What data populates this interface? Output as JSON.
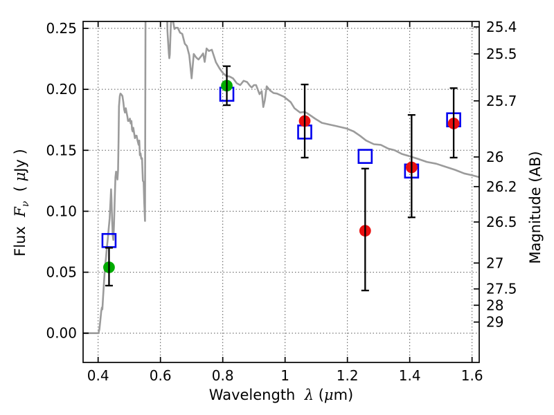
{
  "axis_titles": {
    "x_word": "Wavelength  ",
    "x_lambda": "λ",
    "x_open": " (",
    "x_mu": "μ",
    "x_close": "m)",
    "y_word": "Flux  ",
    "y_F": "F",
    "y_nu": "ν",
    "y_open": "  ( ",
    "y_mu": "μ",
    "y_close": "Jy )",
    "right": "Magnitude (AB)"
  },
  "colors": {
    "spectrum": "#9b9b9b",
    "acs": "#00ab00",
    "wfc3": "#ea1010",
    "model": "#0000ee",
    "grid": "#555555",
    "axes": "#000000",
    "errorbar": "#000000"
  },
  "chart_data": {
    "type": "line+scatter",
    "title": "",
    "xlabel": "Wavelength λ (μm)",
    "ylabel_left": "Flux Fν ( μJy )",
    "ylabel_right": "Magnitude (AB)",
    "xlim": [
      0.3518,
      1.623
    ],
    "ylim": [
      -0.024,
      0.2557
    ],
    "grid": "dotted gridlines at all left-axis and bottom-axis major ticks",
    "legend": "none",
    "x_ticks": [
      {
        "v": 0.4,
        "label": "0.4"
      },
      {
        "v": 0.6,
        "label": "0.6"
      },
      {
        "v": 0.8,
        "label": "0.8"
      },
      {
        "v": 1.0,
        "label": "1"
      },
      {
        "v": 1.2,
        "label": "1.2"
      },
      {
        "v": 1.4,
        "label": "1.4"
      },
      {
        "v": 1.6,
        "label": "1.6"
      }
    ],
    "y_ticks_left": [
      {
        "v": 0.0,
        "label": "0.00"
      },
      {
        "v": 0.05,
        "label": "0.05"
      },
      {
        "v": 0.1,
        "label": "0.10"
      },
      {
        "v": 0.15,
        "label": "0.15"
      },
      {
        "v": 0.2,
        "label": "0.20"
      },
      {
        "v": 0.25,
        "label": "0.25"
      }
    ],
    "y_ticks_right_magnitude": [
      {
        "flux": 0.25119,
        "label": "25.4"
      },
      {
        "flux": 0.22909,
        "label": "25.5"
      },
      {
        "flux": 0.19055,
        "label": "25.7"
      },
      {
        "flux": 0.14454,
        "label": "26"
      },
      {
        "flux": 0.12023,
        "label": "26.2"
      },
      {
        "flux": 0.0912,
        "label": "26.5"
      },
      {
        "flux": 0.05754,
        "label": "27"
      },
      {
        "flux": 0.03631,
        "label": "27.5"
      },
      {
        "flux": 0.02291,
        "label": "28"
      },
      {
        "flux": 0.00912,
        "label": "29"
      }
    ],
    "series": [
      {
        "name": "observed-photometry-green-circles",
        "marker": "filled-circle",
        "color_key": "acs",
        "points": [
          {
            "x": 0.435,
            "y": 0.054,
            "err_lo": 0.015,
            "err_hi": 0.016
          },
          {
            "x": 0.813,
            "y": 0.203,
            "err_lo": 0.016,
            "err_hi": 0.016
          }
        ]
      },
      {
        "name": "observed-photometry-red-circles",
        "marker": "filled-circle",
        "color_key": "wfc3",
        "points": [
          {
            "x": 1.063,
            "y": 0.174,
            "err_lo": 0.03,
            "err_hi": 0.03
          },
          {
            "x": 1.257,
            "y": 0.084,
            "err_lo": 0.049,
            "err_hi": 0.051
          },
          {
            "x": 1.406,
            "y": 0.136,
            "err_lo": 0.041,
            "err_hi": 0.043
          },
          {
            "x": 1.541,
            "y": 0.172,
            "err_lo": 0.028,
            "err_hi": 0.029
          }
        ]
      },
      {
        "name": "model-photometry-blue-open-squares",
        "marker": "open-square",
        "color_key": "model",
        "points": [
          {
            "x": 0.435,
            "y": 0.076
          },
          {
            "x": 0.813,
            "y": 0.196
          },
          {
            "x": 1.063,
            "y": 0.165
          },
          {
            "x": 1.257,
            "y": 0.145
          },
          {
            "x": 1.406,
            "y": 0.133
          },
          {
            "x": 1.541,
            "y": 0.175
          }
        ]
      }
    ],
    "spectrum": {
      "name": "model-spectrum-gray-line",
      "color_key": "spectrum",
      "points": [
        [
          0.352,
          0.0
        ],
        [
          0.401,
          0.0
        ],
        [
          0.404,
          0.003
        ],
        [
          0.407,
          0.01
        ],
        [
          0.41,
          0.018
        ],
        [
          0.412,
          0.021
        ],
        [
          0.4135,
          0.0195
        ],
        [
          0.416,
          0.03
        ],
        [
          0.419,
          0.042
        ],
        [
          0.422,
          0.054
        ],
        [
          0.425,
          0.061
        ],
        [
          0.428,
          0.07
        ],
        [
          0.431,
          0.077
        ],
        [
          0.434,
          0.086
        ],
        [
          0.437,
          0.094
        ],
        [
          0.439,
          0.104
        ],
        [
          0.4405,
          0.112
        ],
        [
          0.4415,
          0.118
        ],
        [
          0.443,
          0.11
        ],
        [
          0.445,
          0.093
        ],
        [
          0.447,
          0.08
        ],
        [
          0.449,
          0.0765
        ],
        [
          0.451,
          0.089
        ],
        [
          0.4535,
          0.112
        ],
        [
          0.4555,
          0.128
        ],
        [
          0.4575,
          0.1325
        ],
        [
          0.46,
          0.13
        ],
        [
          0.462,
          0.126
        ],
        [
          0.464,
          0.134
        ],
        [
          0.4655,
          0.158
        ],
        [
          0.467,
          0.186
        ],
        [
          0.4695,
          0.1945
        ],
        [
          0.4715,
          0.1965
        ],
        [
          0.474,
          0.196
        ],
        [
          0.478,
          0.1945
        ],
        [
          0.481,
          0.1895
        ],
        [
          0.4835,
          0.1835
        ],
        [
          0.486,
          0.181
        ],
        [
          0.489,
          0.1845
        ],
        [
          0.491,
          0.1815
        ],
        [
          0.494,
          0.1775
        ],
        [
          0.496,
          0.174
        ],
        [
          0.499,
          0.174
        ],
        [
          0.502,
          0.176
        ],
        [
          0.5045,
          0.172
        ],
        [
          0.507,
          0.174
        ],
        [
          0.509,
          0.167
        ],
        [
          0.511,
          0.1655
        ],
        [
          0.513,
          0.1685
        ],
        [
          0.5155,
          0.164
        ],
        [
          0.518,
          0.16
        ],
        [
          0.5205,
          0.162
        ],
        [
          0.5235,
          0.162
        ],
        [
          0.526,
          0.1585
        ],
        [
          0.5285,
          0.156
        ],
        [
          0.53,
          0.1545
        ],
        [
          0.532,
          0.158
        ],
        [
          0.534,
          0.146
        ],
        [
          0.536,
          0.1475
        ],
        [
          0.5385,
          0.143
        ],
        [
          0.541,
          0.1435
        ],
        [
          0.5435,
          0.125
        ],
        [
          0.546,
          0.124
        ],
        [
          0.548,
          0.107
        ],
        [
          0.5505,
          0.092
        ],
        [
          0.5525,
          0.3
        ],
        [
          0.618,
          0.3
        ],
        [
          0.6225,
          0.248
        ],
        [
          0.625,
          0.2375
        ],
        [
          0.627,
          0.2295
        ],
        [
          0.6285,
          0.2255
        ],
        [
          0.63,
          0.2285
        ],
        [
          0.6315,
          0.24
        ],
        [
          0.6335,
          0.254
        ],
        [
          0.636,
          0.258
        ],
        [
          0.641,
          0.2555
        ],
        [
          0.645,
          0.2495
        ],
        [
          0.6495,
          0.2505
        ],
        [
          0.6555,
          0.2505
        ],
        [
          0.663,
          0.2465
        ],
        [
          0.67,
          0.2455
        ],
        [
          0.678,
          0.2375
        ],
        [
          0.685,
          0.2355
        ],
        [
          0.6925,
          0.228
        ],
        [
          0.7,
          0.209
        ],
        [
          0.707,
          0.229
        ],
        [
          0.715,
          0.226
        ],
        [
          0.722,
          0.2245
        ],
        [
          0.73,
          0.227
        ],
        [
          0.737,
          0.2295
        ],
        [
          0.742,
          0.2225
        ],
        [
          0.748,
          0.2335
        ],
        [
          0.7555,
          0.2315
        ],
        [
          0.765,
          0.2325
        ],
        [
          0.778,
          0.2222
        ],
        [
          0.79,
          0.217
        ],
        [
          0.8,
          0.2135
        ],
        [
          0.811,
          0.211
        ],
        [
          0.822,
          0.2105
        ],
        [
          0.833,
          0.209
        ],
        [
          0.845,
          0.205
        ],
        [
          0.856,
          0.2035
        ],
        [
          0.867,
          0.207
        ],
        [
          0.878,
          0.206
        ],
        [
          0.887,
          0.203
        ],
        [
          0.893,
          0.2015
        ],
        [
          0.9,
          0.2035
        ],
        [
          0.907,
          0.2035
        ],
        [
          0.918,
          0.196
        ],
        [
          0.925,
          0.1985
        ],
        [
          0.93,
          0.1855
        ],
        [
          0.935,
          0.191
        ],
        [
          0.941,
          0.2025
        ],
        [
          0.952,
          0.199
        ],
        [
          0.963,
          0.197
        ],
        [
          0.974,
          0.1965
        ],
        [
          0.996,
          0.194
        ],
        [
          1.018,
          0.1895
        ],
        [
          1.03,
          0.1845
        ],
        [
          1.048,
          0.181
        ],
        [
          1.063,
          0.1815
        ],
        [
          1.07,
          0.1805
        ],
        [
          1.085,
          0.178
        ],
        [
          1.096,
          0.176
        ],
        [
          1.118,
          0.1725
        ],
        [
          1.14,
          0.1712
        ],
        [
          1.163,
          0.17
        ],
        [
          1.196,
          0.168
        ],
        [
          1.22,
          0.1655
        ],
        [
          1.24,
          0.162
        ],
        [
          1.26,
          0.158
        ],
        [
          1.285,
          0.155
        ],
        [
          1.307,
          0.1545
        ],
        [
          1.33,
          0.1515
        ],
        [
          1.352,
          0.15
        ],
        [
          1.375,
          0.147
        ],
        [
          1.395,
          0.1455
        ],
        [
          1.426,
          0.143
        ],
        [
          1.455,
          0.1405
        ],
        [
          1.485,
          0.139
        ],
        [
          1.515,
          0.1365
        ],
        [
          1.545,
          0.134
        ],
        [
          1.575,
          0.131
        ],
        [
          1.6,
          0.1295
        ],
        [
          1.623,
          0.128
        ]
      ]
    }
  }
}
